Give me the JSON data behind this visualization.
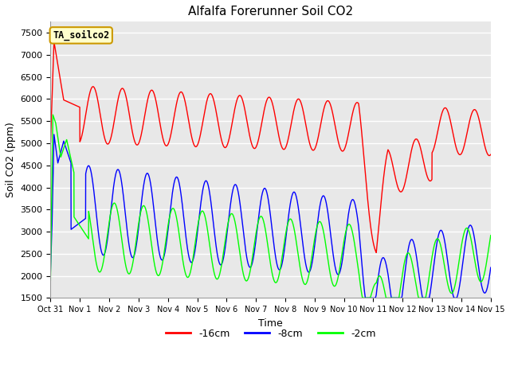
{
  "title": "Alfalfa Forerunner Soil CO2",
  "xlabel": "Time",
  "ylabel": "Soil CO2 (ppm)",
  "ylim": [
    1500,
    7750
  ],
  "yticks": [
    1500,
    2000,
    2500,
    3000,
    3500,
    4000,
    4500,
    5000,
    5500,
    6000,
    6500,
    7000,
    7500
  ],
  "bg_color": "#e8e8e8",
  "line_colors": {
    "d16": "red",
    "d8": "blue",
    "d2": "lime"
  },
  "annotation_text": "TA_soilco2",
  "annotation_bg": "#ffffcc",
  "annotation_border": "#cc9900",
  "x_start": 0,
  "x_end": 15,
  "xtick_labels": [
    "Oct 31",
    "Nov 1",
    "Nov 2",
    "Nov 3",
    "Nov 4",
    "Nov 5",
    "Nov 6",
    "Nov 7",
    "Nov 8",
    "Nov 9",
    "Nov 10",
    "Nov 11",
    "Nov 12",
    "Nov 13",
    "Nov 14",
    "Nov 15"
  ],
  "xtick_positions": [
    0,
    1,
    2,
    3,
    4,
    5,
    6,
    7,
    8,
    9,
    10,
    11,
    12,
    13,
    14,
    15
  ]
}
